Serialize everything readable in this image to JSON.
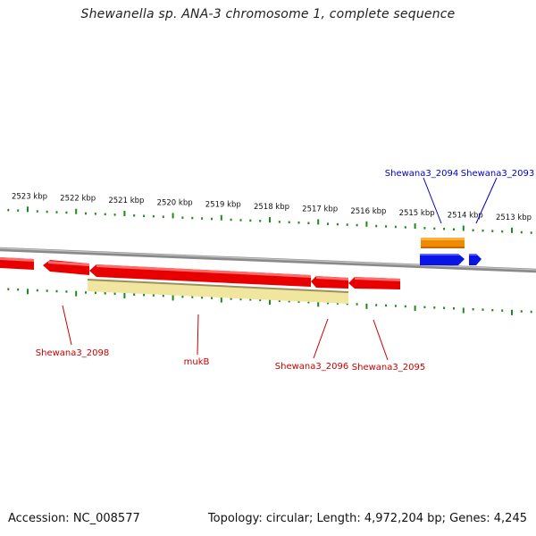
{
  "title": "Shewanella sp. ANA-3 chromosome 1, complete sequence",
  "footer": {
    "accession": "Accession: NC_008577",
    "topology": "Topology: circular; Length: 4,972,204 bp; Genes: 4,245"
  },
  "colors": {
    "reverse_strand_gene": "#e80000",
    "forward_strand_gene": "#0a14e6",
    "orange_feature": "#f08a00",
    "yellow_feature": "#f0e6a0",
    "ticks": "#1e8a1e",
    "backbone": "#8a8a8a",
    "label_red": "#c80000",
    "label_blue": "#0000c8"
  },
  "scale": {
    "unit": "kbp",
    "labels": [
      "2523 kbp",
      "2522 kbp",
      "2521 kbp",
      "2520 kbp",
      "2519 kbp",
      "2518 kbp",
      "2517 kbp",
      "2516 kbp",
      "2515 kbp",
      "2514 kbp",
      "2513 kbp"
    ]
  },
  "gene_labels": [
    {
      "text": "Shewana3_2094",
      "strand": "forward"
    },
    {
      "text": "Shewana3_2093",
      "strand": "forward"
    },
    {
      "text": "Shewana3_2098",
      "strand": "reverse"
    },
    {
      "text": "mukB",
      "strand": "reverse"
    },
    {
      "text": "Shewana3_2096",
      "strand": "reverse"
    },
    {
      "text": "Shewana3_2095",
      "strand": "reverse"
    }
  ]
}
